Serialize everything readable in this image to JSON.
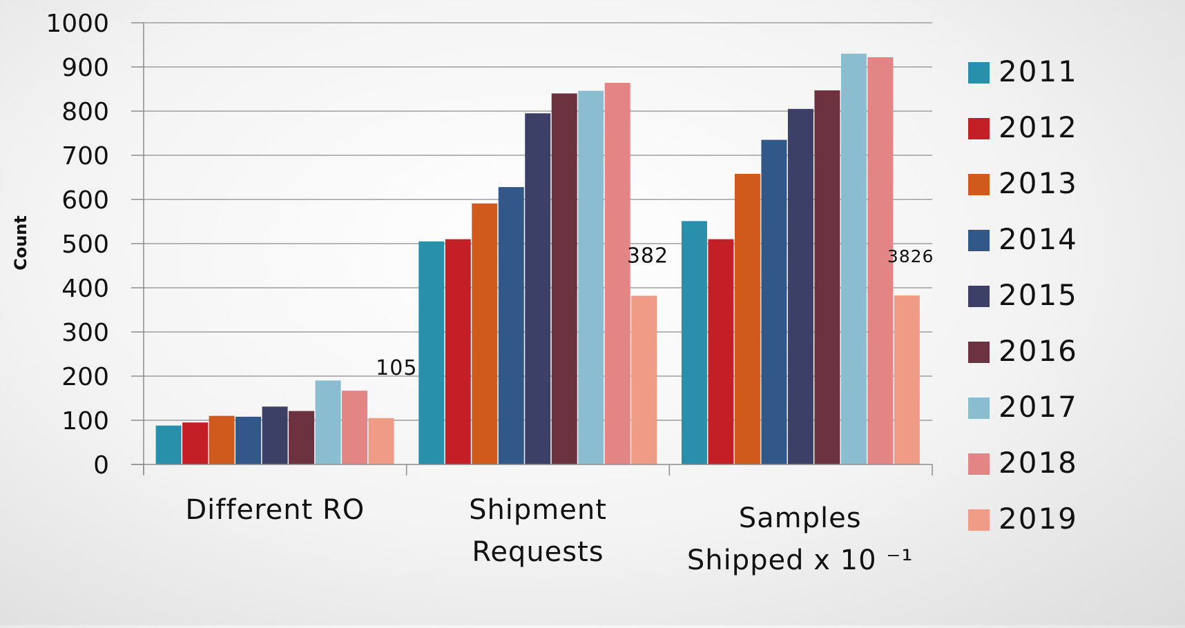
{
  "chart_data": {
    "type": "bar",
    "title": "",
    "xlabel": "",
    "ylabel": "Count",
    "ylim": [
      0,
      1000
    ],
    "yticks": [
      0,
      100,
      200,
      300,
      400,
      500,
      600,
      700,
      800,
      900,
      1000
    ],
    "grid": true,
    "legend_position": "right",
    "categories": [
      {
        "lines": [
          "Different RO"
        ]
      },
      {
        "lines": [
          "Shipment",
          "Requests"
        ]
      },
      {
        "lines": [
          "Samples",
          "Shipped x 10 ⁻¹"
        ]
      }
    ],
    "series": [
      {
        "name": "2011",
        "color": "#2990ac",
        "values": [
          88,
          505,
          551
        ]
      },
      {
        "name": "2012",
        "color": "#c41e26",
        "values": [
          95,
          510,
          510
        ]
      },
      {
        "name": "2013",
        "color": "#d05a1b",
        "values": [
          110,
          591,
          658
        ]
      },
      {
        "name": "2014",
        "color": "#325789",
        "values": [
          108,
          628,
          735
        ]
      },
      {
        "name": "2015",
        "color": "#3c4066",
        "values": [
          131,
          795,
          805
        ]
      },
      {
        "name": "2016",
        "color": "#6c323f",
        "values": [
          121,
          840,
          847
        ]
      },
      {
        "name": "2017",
        "color": "#8bbdd1",
        "values": [
          190,
          846,
          930
        ]
      },
      {
        "name": "2018",
        "color": "#e48585",
        "values": [
          167,
          864,
          922
        ]
      },
      {
        "name": "2019",
        "color": "#f09b85",
        "values": [
          105,
          382,
          382.6
        ]
      }
    ],
    "annotations": [
      {
        "text": "105",
        "category": 0
      },
      {
        "text": "382",
        "category": 1
      },
      {
        "text": "3826",
        "category": 2
      }
    ]
  }
}
